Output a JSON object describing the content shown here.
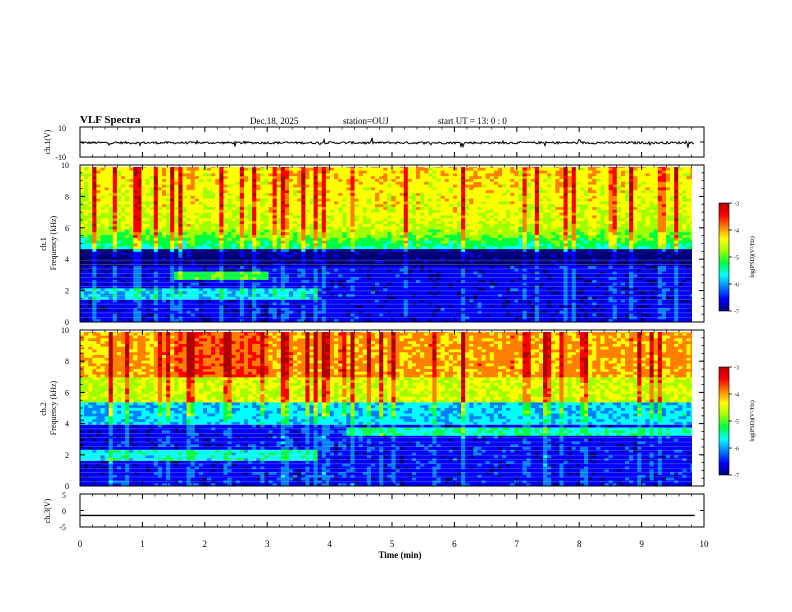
{
  "header": {
    "title": "VLF Spectra",
    "date": "Dec.18, 2025",
    "station": "station=OUJ",
    "start": "start UT = 13: 0 : 0"
  },
  "colors": {
    "colormap": [
      "#00007a",
      "#0000ff",
      "#0080ff",
      "#00ffff",
      "#00ff40",
      "#a0ff00",
      "#ffff00",
      "#ff8000",
      "#ff0000",
      "#b00000"
    ]
  },
  "chart_data": [
    {
      "type": "line",
      "panel": "ch1-waveform",
      "ylabel": "ch.1(V)",
      "ylim": [
        -10,
        10
      ],
      "y_ticks": [
        "10",
        "-10"
      ],
      "xlim": [
        0,
        10
      ],
      "baseline_v": -0.5,
      "noise_amplitude_v": 1.5
    },
    {
      "type": "heatmap",
      "panel": "ch1-spectrogram",
      "ylabel": "ch.1\nFrequency (kHz)",
      "ylim": [
        0,
        10
      ],
      "y_ticks": [
        "0",
        "2",
        "4",
        "6",
        "8",
        "10"
      ],
      "xlim": [
        0,
        9.85
      ],
      "colorbar": {
        "label": "log(PSD)(V²/Hz)",
        "range": [
          -7,
          -3
        ],
        "ticks": [
          "-3",
          "-4",
          "-5",
          "-6",
          "-7"
        ]
      }
    },
    {
      "type": "heatmap",
      "panel": "ch2-spectrogram",
      "ylabel": "ch.2\nFrequency (kHz)",
      "ylim": [
        0,
        10
      ],
      "y_ticks": [
        "0",
        "2",
        "4",
        "6",
        "8",
        "10"
      ],
      "xlim": [
        0,
        9.85
      ],
      "colorbar": {
        "label": "log(PSD)(V²/Hz)",
        "range": [
          -7,
          -3
        ],
        "ticks": [
          "-3",
          "-4",
          "-5",
          "-6",
          "-7"
        ]
      }
    },
    {
      "type": "line",
      "panel": "ch3-waveform",
      "ylabel": "ch.3(V)",
      "ylim": [
        -5,
        5
      ],
      "y_ticks": [
        "5",
        "0",
        "-5"
      ],
      "xlim": [
        0,
        10
      ],
      "baseline_v": -1.5
    }
  ],
  "x_axis": {
    "label": "Time (min)",
    "range": [
      0,
      10
    ],
    "ticks": [
      "0",
      "1",
      "2",
      "3",
      "4",
      "5",
      "6",
      "7",
      "8",
      "9",
      "10"
    ]
  }
}
